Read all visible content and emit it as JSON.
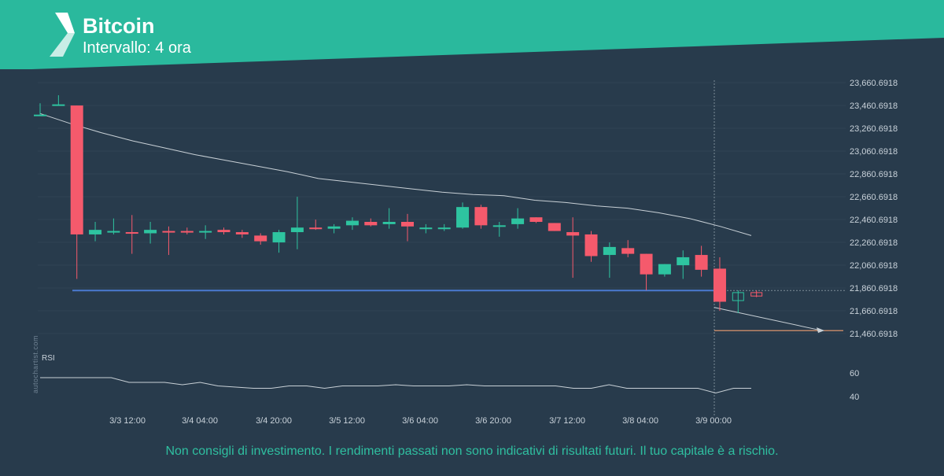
{
  "header": {
    "title": "Bitcoin",
    "subtitle": "Intervallo: 4 ora"
  },
  "footer": {
    "disclaimer": "Non consigli di investimento. I rendimenti passati non sono indicativi di risultati futuri. Il tuo capitale è a rischio."
  },
  "watermark": "autochartist.com",
  "colors": {
    "background": "#283b4c",
    "banner": "#2ab99d",
    "up": "#2ec4a0",
    "down": "#f55a6c",
    "support": "#4a7bd0",
    "target": "#f0a070",
    "ma_line": "#c8d0d6"
  },
  "chart_data": {
    "type": "candlestick",
    "y_ticks": [
      "23,660.6918",
      "23,460.6918",
      "23,260.6918",
      "23,060.6918",
      "22,860.6918",
      "22,660.6918",
      "22,460.6918",
      "22,260.6918",
      "22,060.6918",
      "21,860.6918",
      "21,660.6918",
      "21,460.6918"
    ],
    "ylim": [
      21400,
      23700
    ],
    "x_ticks": [
      "3/3 12:00",
      "3/4 04:00",
      "3/4 20:00",
      "3/5 12:00",
      "3/6 04:00",
      "3/6 20:00",
      "3/7 12:00",
      "3/8 04:00",
      "3/9 00:00"
    ],
    "candles": [
      [
        23380,
        23480,
        23380,
        23380
      ],
      [
        23460,
        23550,
        23460,
        23470
      ],
      [
        23460,
        23460,
        21940,
        22330
      ],
      [
        22330,
        22440,
        22270,
        22370
      ],
      [
        22350,
        22470,
        22330,
        22360
      ],
      [
        22350,
        22500,
        22160,
        22340
      ],
      [
        22340,
        22440,
        22250,
        22370
      ],
      [
        22360,
        22400,
        22150,
        22350
      ],
      [
        22360,
        22390,
        22330,
        22350
      ],
      [
        22350,
        22410,
        22290,
        22360
      ],
      [
        22370,
        22390,
        22330,
        22350
      ],
      [
        22350,
        22370,
        22300,
        22330
      ],
      [
        22320,
        22340,
        22240,
        22270
      ],
      [
        22260,
        22370,
        22170,
        22350
      ],
      [
        22350,
        22660,
        22200,
        22390
      ],
      [
        22390,
        22460,
        22370,
        22380
      ],
      [
        22380,
        22420,
        22340,
        22400
      ],
      [
        22410,
        22480,
        22370,
        22450
      ],
      [
        22440,
        22470,
        22400,
        22410
      ],
      [
        22420,
        22560,
        22380,
        22440
      ],
      [
        22440,
        22510,
        22270,
        22400
      ],
      [
        22380,
        22420,
        22340,
        22390
      ],
      [
        22380,
        22420,
        22360,
        22390
      ],
      [
        22390,
        22610,
        22380,
        22570
      ],
      [
        22570,
        22590,
        22380,
        22410
      ],
      [
        22400,
        22440,
        22310,
        22410
      ],
      [
        22420,
        22560,
        22380,
        22470
      ],
      [
        22480,
        22480,
        22430,
        22440
      ],
      [
        22430,
        22430,
        22360,
        22360
      ],
      [
        22350,
        22480,
        21950,
        22320
      ],
      [
        22330,
        22360,
        22090,
        22140
      ],
      [
        22150,
        22260,
        21950,
        22220
      ],
      [
        22210,
        22280,
        22130,
        22160
      ],
      [
        22160,
        22160,
        21840,
        21980
      ],
      [
        21980,
        22070,
        21960,
        22070
      ],
      [
        22060,
        22190,
        21940,
        22130
      ],
      [
        22150,
        22230,
        21960,
        22020
      ],
      [
        22030,
        22130,
        21660,
        21740
      ],
      [
        21750,
        21840,
        21640,
        21820
      ],
      [
        21820,
        21840,
        21780,
        21790
      ]
    ],
    "moving_average": [
      23390,
      23300,
      23220,
      23150,
      23090,
      23030,
      22980,
      22930,
      22880,
      22820,
      22790,
      22760,
      22730,
      22700,
      22680,
      22670,
      22630,
      22610,
      22580,
      22560,
      22520,
      22470,
      22400,
      22320
    ],
    "rsi": {
      "label": "RSI",
      "ticks": [
        "60",
        "40"
      ],
      "values": [
        56,
        56,
        56,
        56,
        56,
        52,
        52,
        52,
        50,
        52,
        49,
        48,
        47,
        47,
        49,
        49,
        47,
        49,
        49,
        49,
        50,
        49,
        49,
        49,
        50,
        49,
        49,
        49,
        49,
        49,
        47,
        47,
        50,
        47,
        47,
        47,
        47,
        47,
        43,
        47,
        47
      ]
    },
    "support_level": 21838,
    "target_level": 21487,
    "current_time_label": "3/9 00:00"
  }
}
